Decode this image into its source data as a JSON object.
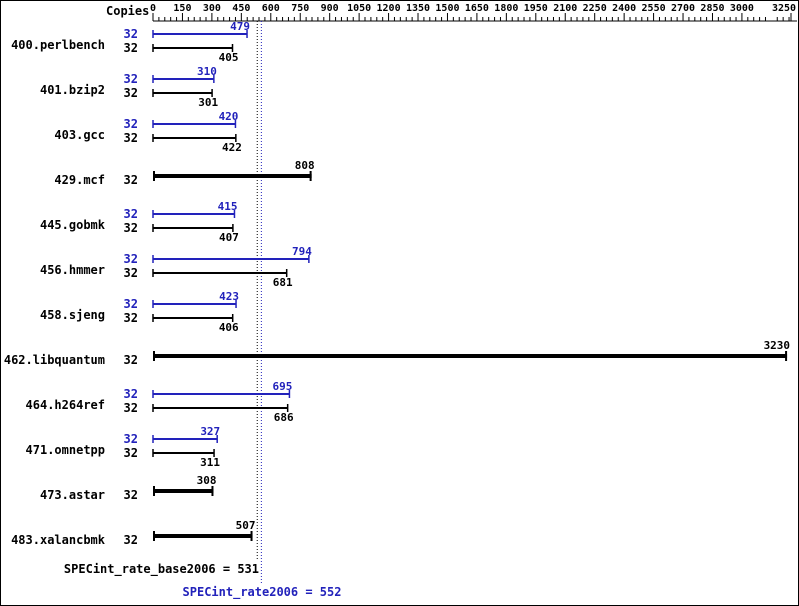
{
  "header": {
    "copies_label": "Copies"
  },
  "chart_data": {
    "type": "bar",
    "orientation": "horizontal",
    "x_axis": {
      "min": 0,
      "max": 3250,
      "major_tick_step": 150,
      "minor_tick_step": 30,
      "tick_labels": [
        0,
        150,
        300,
        450,
        600,
        750,
        900,
        1050,
        1200,
        1350,
        1500,
        1650,
        1800,
        1950,
        2100,
        2250,
        2400,
        2550,
        2700,
        2850,
        3000,
        3250
      ]
    },
    "series_colors": {
      "peak": "#2222bb",
      "base": "#000000"
    },
    "copies_column_header": "Copies",
    "benchmarks": [
      {
        "name": "400.perlbench",
        "copies": 32,
        "peak": 479,
        "base": 405
      },
      {
        "name": "401.bzip2",
        "copies": 32,
        "peak": 310,
        "base": 301
      },
      {
        "name": "403.gcc",
        "copies": 32,
        "peak": 420,
        "base": 422
      },
      {
        "name": "429.mcf",
        "copies": 32,
        "value": 808,
        "single": true
      },
      {
        "name": "445.gobmk",
        "copies": 32,
        "peak": 415,
        "base": 407
      },
      {
        "name": "456.hmmer",
        "copies": 32,
        "peak": 794,
        "base": 681
      },
      {
        "name": "458.sjeng",
        "copies": 32,
        "peak": 423,
        "base": 406
      },
      {
        "name": "462.libquantum",
        "copies": 32,
        "value": 3230,
        "single": true
      },
      {
        "name": "464.h264ref",
        "copies": 32,
        "peak": 695,
        "base": 686
      },
      {
        "name": "471.omnetpp",
        "copies": 32,
        "peak": 327,
        "base": 311
      },
      {
        "name": "473.astar",
        "copies": 32,
        "value": 308,
        "single": true
      },
      {
        "name": "483.xalancbmk",
        "copies": 32,
        "value": 507,
        "single": true
      }
    ],
    "reference_lines": [
      {
        "id": "base",
        "label": "SPECint_rate_base2006 = 531",
        "value": 531,
        "color": "#000000"
      },
      {
        "id": "peak",
        "label": "SPECint_rate2006 = 552",
        "value": 552,
        "color": "#2222bb"
      }
    ]
  }
}
